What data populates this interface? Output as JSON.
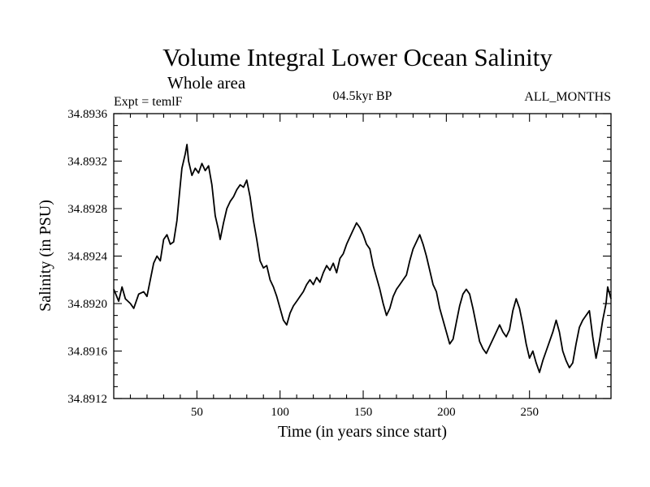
{
  "chart_data": {
    "type": "line",
    "title": "Volume Integral Lower Ocean Salinity",
    "subtitle": "Whole area",
    "left_label": "Expt = temlF",
    "center_label": "04.5kyr BP",
    "right_label": "ALL_MONTHS",
    "xlabel": "Time (in years since start)",
    "ylabel": "Salinity (in PSU)",
    "xlim": [
      0,
      299
    ],
    "ylim": [
      34.8912,
      34.8936
    ],
    "x_major_ticks": [
      50,
      100,
      150,
      200,
      250
    ],
    "x_minor_step": 10,
    "y_major_ticks": [
      34.8912,
      34.8916,
      34.892,
      34.8924,
      34.8928,
      34.8932,
      34.8936
    ],
    "y_tick_labels": [
      "34.8912",
      "34.8916",
      "34.8920",
      "34.8924",
      "34.8928",
      "34.8932",
      "34.8936"
    ],
    "y_minor_step": 0.0001,
    "series": [
      {
        "name": "Salinity",
        "color": "#000000",
        "points": [
          [
            0,
            34.89212
          ],
          [
            3,
            34.89202
          ],
          [
            5,
            34.89214
          ],
          [
            7,
            34.89204
          ],
          [
            10,
            34.892
          ],
          [
            12,
            34.89196
          ],
          [
            15,
            34.89208
          ],
          [
            18,
            34.8921
          ],
          [
            20,
            34.89206
          ],
          [
            22,
            34.8922
          ],
          [
            24,
            34.89234
          ],
          [
            26,
            34.8924
          ],
          [
            28,
            34.89236
          ],
          [
            30,
            34.89254
          ],
          [
            32,
            34.89258
          ],
          [
            34,
            34.8925
          ],
          [
            36,
            34.89252
          ],
          [
            38,
            34.8927
          ],
          [
            40,
            34.893
          ],
          [
            41,
            34.89314
          ],
          [
            43,
            34.89326
          ],
          [
            44,
            34.89334
          ],
          [
            45,
            34.8932
          ],
          [
            47,
            34.89308
          ],
          [
            49,
            34.89314
          ],
          [
            51,
            34.8931
          ],
          [
            53,
            34.89318
          ],
          [
            55,
            34.89312
          ],
          [
            57,
            34.89316
          ],
          [
            59,
            34.893
          ],
          [
            61,
            34.89274
          ],
          [
            63,
            34.89262
          ],
          [
            64,
            34.89254
          ],
          [
            66,
            34.89268
          ],
          [
            68,
            34.8928
          ],
          [
            70,
            34.89286
          ],
          [
            72,
            34.8929
          ],
          [
            74,
            34.89296
          ],
          [
            76,
            34.893
          ],
          [
            78,
            34.89298
          ],
          [
            80,
            34.89304
          ],
          [
            82,
            34.8929
          ],
          [
            84,
            34.8927
          ],
          [
            86,
            34.89254
          ],
          [
            88,
            34.89236
          ],
          [
            90,
            34.8923
          ],
          [
            92,
            34.89232
          ],
          [
            94,
            34.8922
          ],
          [
            96,
            34.89214
          ],
          [
            98,
            34.89206
          ],
          [
            100,
            34.89196
          ],
          [
            102,
            34.89186
          ],
          [
            104,
            34.89182
          ],
          [
            106,
            34.89192
          ],
          [
            108,
            34.89198
          ],
          [
            110,
            34.89202
          ],
          [
            112,
            34.89206
          ],
          [
            114,
            34.8921
          ],
          [
            116,
            34.89216
          ],
          [
            118,
            34.8922
          ],
          [
            120,
            34.89216
          ],
          [
            122,
            34.89222
          ],
          [
            124,
            34.89218
          ],
          [
            126,
            34.89226
          ],
          [
            128,
            34.89232
          ],
          [
            130,
            34.89228
          ],
          [
            132,
            34.89234
          ],
          [
            134,
            34.89226
          ],
          [
            136,
            34.89238
          ],
          [
            138,
            34.89242
          ],
          [
            140,
            34.8925
          ],
          [
            142,
            34.89256
          ],
          [
            144,
            34.89262
          ],
          [
            146,
            34.89268
          ],
          [
            148,
            34.89264
          ],
          [
            150,
            34.89258
          ],
          [
            152,
            34.8925
          ],
          [
            154,
            34.89246
          ],
          [
            156,
            34.89232
          ],
          [
            158,
            34.89222
          ],
          [
            160,
            34.89212
          ],
          [
            162,
            34.892
          ],
          [
            164,
            34.8919
          ],
          [
            166,
            34.89196
          ],
          [
            168,
            34.89206
          ],
          [
            170,
            34.89212
          ],
          [
            172,
            34.89216
          ],
          [
            174,
            34.8922
          ],
          [
            176,
            34.89224
          ],
          [
            178,
            34.89236
          ],
          [
            180,
            34.89246
          ],
          [
            182,
            34.89252
          ],
          [
            184,
            34.89258
          ],
          [
            186,
            34.8925
          ],
          [
            188,
            34.8924
          ],
          [
            190,
            34.89228
          ],
          [
            192,
            34.89216
          ],
          [
            194,
            34.8921
          ],
          [
            196,
            34.89196
          ],
          [
            198,
            34.89186
          ],
          [
            200,
            34.89176
          ],
          [
            202,
            34.89166
          ],
          [
            204,
            34.8917
          ],
          [
            206,
            34.89184
          ],
          [
            208,
            34.89198
          ],
          [
            210,
            34.89208
          ],
          [
            212,
            34.89212
          ],
          [
            214,
            34.89208
          ],
          [
            216,
            34.89196
          ],
          [
            218,
            34.89182
          ],
          [
            220,
            34.89168
          ],
          [
            222,
            34.89162
          ],
          [
            224,
            34.89158
          ],
          [
            226,
            34.89164
          ],
          [
            228,
            34.8917
          ],
          [
            230,
            34.89176
          ],
          [
            232,
            34.89182
          ],
          [
            234,
            34.89176
          ],
          [
            236,
            34.89172
          ],
          [
            238,
            34.89178
          ],
          [
            240,
            34.89194
          ],
          [
            242,
            34.89204
          ],
          [
            244,
            34.89196
          ],
          [
            246,
            34.89182
          ],
          [
            248,
            34.89166
          ],
          [
            250,
            34.89154
          ],
          [
            252,
            34.8916
          ],
          [
            254,
            34.8915
          ],
          [
            256,
            34.89142
          ],
          [
            258,
            34.89152
          ],
          [
            260,
            34.8916
          ],
          [
            262,
            34.89168
          ],
          [
            264,
            34.89176
          ],
          [
            266,
            34.89186
          ],
          [
            268,
            34.89176
          ],
          [
            270,
            34.8916
          ],
          [
            272,
            34.89152
          ],
          [
            274,
            34.89146
          ],
          [
            276,
            34.8915
          ],
          [
            278,
            34.89166
          ],
          [
            280,
            34.8918
          ],
          [
            282,
            34.89186
          ],
          [
            284,
            34.8919
          ],
          [
            286,
            34.89194
          ],
          [
            288,
            34.89172
          ],
          [
            290,
            34.89154
          ],
          [
            292,
            34.89168
          ],
          [
            294,
            34.89186
          ],
          [
            296,
            34.892
          ],
          [
            297,
            34.89214
          ],
          [
            299,
            34.89204
          ]
        ]
      }
    ]
  }
}
